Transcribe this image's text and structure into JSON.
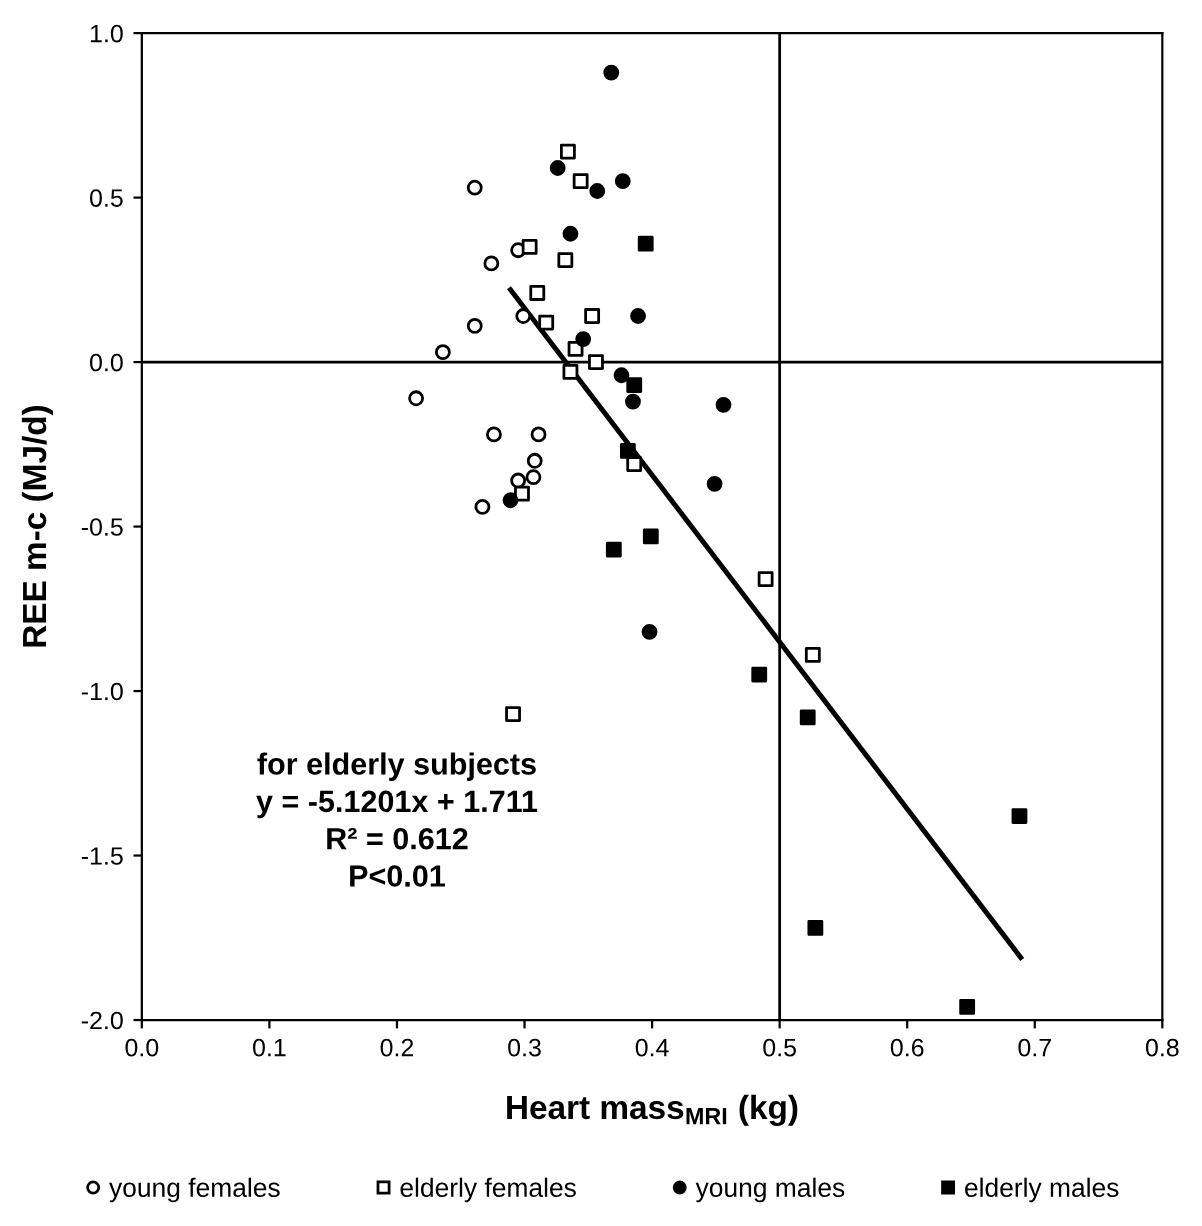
{
  "chart_data": {
    "type": "scatter",
    "xlabel": "Heart mass$_{MRI}$ (kg)",
    "ylabel": "REE m-c (MJ/d)",
    "xlim": [
      0.0,
      0.8
    ],
    "xticks": [
      {
        "value": 0,
        "label": "0.0"
      },
      0.1,
      0.2,
      0.3,
      0.4,
      0.5,
      0.6,
      0.7,
      0.8
    ],
    "ylim": [
      -2.0,
      1.0
    ],
    "yticks": [
      {
        "value": -2,
        "label": "-2.0"
      },
      -1.5,
      {
        "value": -1,
        "label": "-1.0"
      },
      -0.5,
      {
        "value": 0,
        "label": "0.0"
      },
      0.5,
      {
        "value": 1,
        "label": "1.0"
      }
    ],
    "grid": false,
    "legend": "bottom",
    "ref_lines": [
      {
        "axis": "y",
        "value": 0.0,
        "color": "#000000"
      },
      {
        "axis": "x",
        "value": 0.5,
        "color": "#000000"
      }
    ],
    "annotations": [
      "for elderly subjects\ny = -5.1201x + 1.711\nR² = 0.612\nP<0.01"
    ],
    "series": [
      {
        "name": "young females",
        "marker": "circle",
        "color": "#ffffff",
        "x": [
          0.261,
          0.274,
          0.261,
          0.236,
          0.215,
          0.276,
          0.311,
          0.308,
          0.295,
          0.307,
          0.267,
          0.295,
          0.299
        ],
        "values": [
          0.53,
          0.3,
          0.11,
          0.03,
          -0.11,
          -0.22,
          -0.22,
          -0.3,
          -0.36,
          -0.35,
          -0.44,
          0.34,
          0.14
        ]
      },
      {
        "name": "elderly females",
        "marker": "square",
        "color": "#ffffff",
        "x": [
          0.334,
          0.344,
          0.304,
          0.332,
          0.31,
          0.317,
          0.353,
          0.34,
          0.356,
          0.336,
          0.298,
          0.386,
          0.489,
          0.526,
          0.291
        ],
        "values": [
          0.64,
          0.55,
          0.35,
          0.31,
          0.21,
          0.12,
          0.14,
          0.04,
          0.0,
          -0.03,
          -0.4,
          -0.31,
          -0.66,
          -0.89,
          -1.07
        ]
      },
      {
        "name": "young males",
        "marker": "circle",
        "color": "#000000",
        "x": [
          0.368,
          0.326,
          0.377,
          0.357,
          0.336,
          0.389,
          0.346,
          0.376,
          0.385,
          0.456,
          0.449,
          0.289,
          0.398
        ],
        "values": [
          0.88,
          0.59,
          0.55,
          0.52,
          0.39,
          0.14,
          0.07,
          -0.04,
          -0.12,
          -0.13,
          -0.37,
          -0.42,
          -0.82
        ]
      },
      {
        "name": "elderly males",
        "marker": "square",
        "color": "#000000",
        "x": [
          0.395,
          0.386,
          0.381,
          0.399,
          0.37,
          0.484,
          0.522,
          0.688,
          0.528,
          0.647
        ],
        "values": [
          0.36,
          -0.07,
          -0.27,
          -0.53,
          -0.57,
          -0.95,
          -1.08,
          -1.38,
          -1.72,
          -1.96
        ]
      },
      {
        "type": "line",
        "marker": "none",
        "line_style": "solid",
        "color": "#000000",
        "x": [
          0.289,
          0.689
        ],
        "values": [
          0.22,
          -1.81
        ]
      }
    ]
  }
}
